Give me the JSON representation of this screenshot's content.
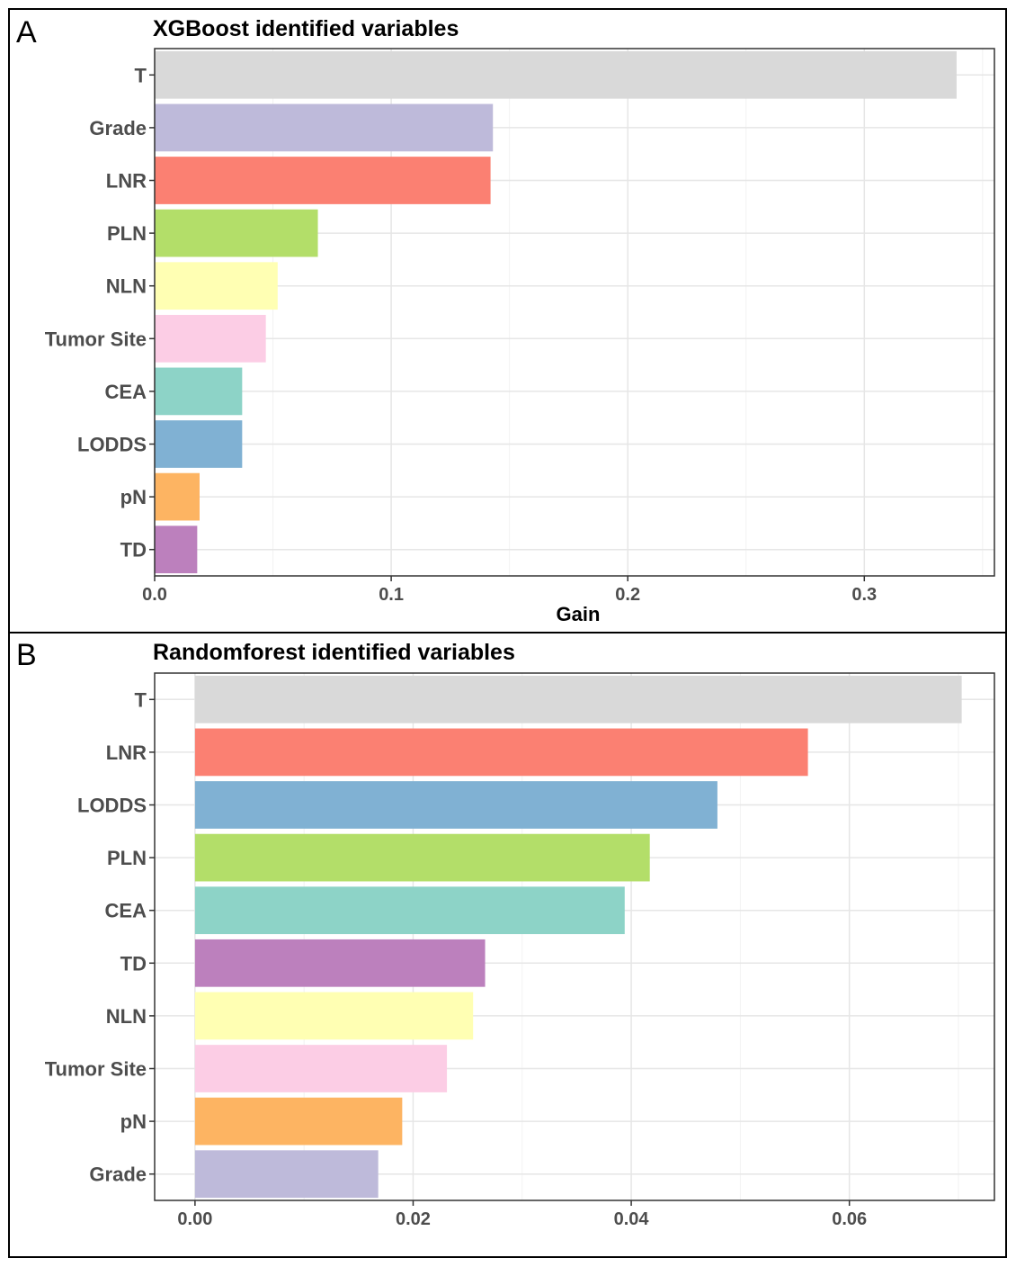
{
  "chart_data": [
    {
      "type": "bar",
      "orientation": "horizontal",
      "panel_label": "A",
      "title": "XGBoost identified variables",
      "xlabel": "Gain",
      "ylabel": "",
      "xlim": [
        0,
        0.355
      ],
      "ticks": [
        0.0,
        0.1,
        0.2,
        0.3
      ],
      "tick_labels": [
        "0.0",
        "0.1",
        "0.2",
        "0.3"
      ],
      "grid": true,
      "categories": [
        "T",
        "Grade",
        "LNR",
        "PLN",
        "NLN",
        "Tumor Site",
        "CEA",
        "LODDS",
        "pN",
        "TD"
      ],
      "values": [
        0.339,
        0.143,
        0.142,
        0.069,
        0.052,
        0.047,
        0.037,
        0.037,
        0.019,
        0.018
      ],
      "colors": [
        "#D9D9D9",
        "#BEBADA",
        "#FB8072",
        "#B3DE69",
        "#FFFFB3",
        "#FCCDE5",
        "#8DD3C7",
        "#80B1D3",
        "#FDB462",
        "#BC80BD"
      ]
    },
    {
      "type": "bar",
      "orientation": "horizontal",
      "panel_label": "B",
      "title": "Randomforest identified variables",
      "xlabel": "",
      "ylabel": "",
      "xlim": [
        -0.0037,
        0.0733
      ],
      "ticks": [
        0.0,
        0.02,
        0.04,
        0.06
      ],
      "tick_labels": [
        "0.00",
        "0.02",
        "0.04",
        "0.06"
      ],
      "grid": true,
      "categories": [
        "T",
        "LNR",
        "LODDS",
        "PLN",
        "CEA",
        "TD",
        "NLN",
        "Tumor Site",
        "pN",
        "Grade"
      ],
      "values": [
        0.0703,
        0.0562,
        0.0479,
        0.0417,
        0.0394,
        0.0266,
        0.0255,
        0.0231,
        0.019,
        0.0168
      ],
      "colors": [
        "#D9D9D9",
        "#FB8072",
        "#80B1D3",
        "#B3DE69",
        "#8DD3C7",
        "#BC80BD",
        "#FFFFB3",
        "#FCCDE5",
        "#FDB462",
        "#BEBADA"
      ]
    }
  ]
}
